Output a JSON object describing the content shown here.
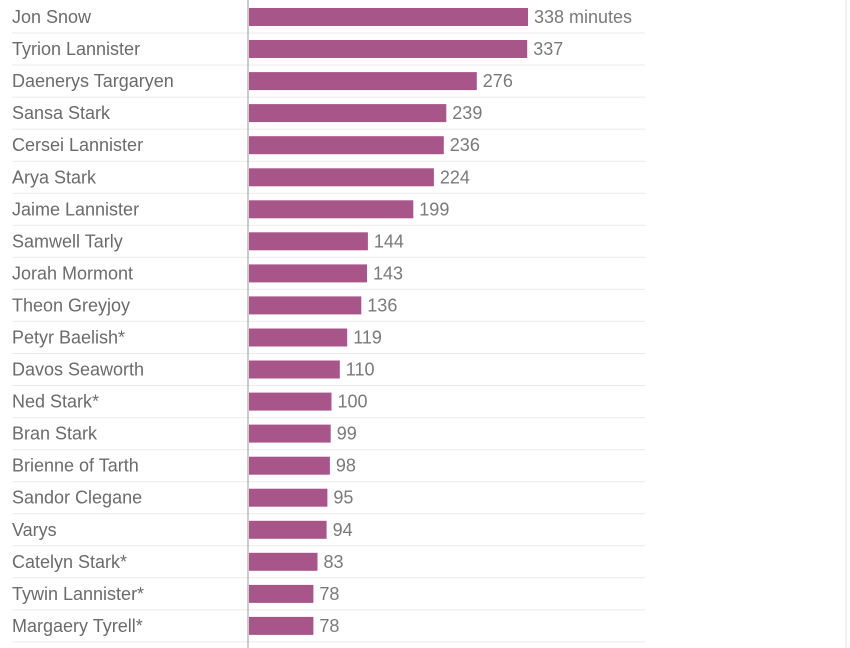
{
  "chart_data": {
    "type": "bar",
    "orientation": "horizontal",
    "categories": [
      "Jon Snow",
      "Tyrion Lannister",
      "Daenerys Targaryen",
      "Sansa Stark",
      "Cersei Lannister",
      "Arya Stark",
      "Jaime Lannister",
      "Samwell Tarly",
      "Jorah Mormont",
      "Theon Greyjoy",
      "Petyr Baelish*",
      "Davos Seaworth",
      "Ned Stark*",
      "Bran Stark",
      "Brienne of Tarth",
      "Sandor Clegane",
      "Varys",
      "Catelyn Stark*",
      "Tywin Lannister*",
      "Margaery Tyrell*"
    ],
    "values": [
      338,
      337,
      276,
      239,
      236,
      224,
      199,
      144,
      143,
      136,
      119,
      110,
      100,
      99,
      98,
      95,
      94,
      83,
      78,
      78
    ],
    "value_labels": [
      "338 minutes",
      "337",
      "276",
      "239",
      "236",
      "224",
      "199",
      "144",
      "143",
      "136",
      "119",
      "110",
      "100",
      "99",
      "98",
      "95",
      "94",
      "83",
      "78",
      "78"
    ],
    "unit": "minutes",
    "title": "",
    "xlabel": "",
    "ylabel": "",
    "xlim": [
      0,
      338
    ],
    "bar_color": "#a8558a",
    "label_color": "#6b6b6b",
    "value_color": "#7a7a7a",
    "grid": true
  }
}
